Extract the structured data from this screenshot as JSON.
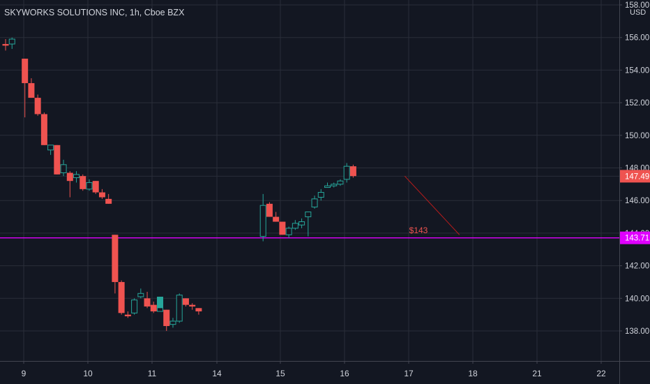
{
  "header": {
    "title": "SKYWORKS SOLUTIONS INC, 1h, Cboe BZX"
  },
  "colors": {
    "background": "#131722",
    "grid": "#2a2e39",
    "up": "#26a69a",
    "down": "#ef5350",
    "hline": "#e000ff",
    "text": "#d1d4dc",
    "annotation": "#ef5350"
  },
  "chart_data": {
    "type": "candlestick",
    "title": "SKYWORKS SOLUTIONS INC, 1h, Cboe BZX",
    "currency": "USD",
    "ylim": [
      136.3,
      158.0
    ],
    "y_ticks": [
      "138.00",
      "140.00",
      "142.00",
      "144.00",
      "146.00",
      "148.00",
      "150.00",
      "152.00",
      "154.00",
      "156.00",
      "158.00"
    ],
    "x_ticks": [
      "9",
      "10",
      "11",
      "14",
      "15",
      "16",
      "17",
      "18",
      "21",
      "22"
    ],
    "grid": true,
    "last_price": "147.49",
    "horizontal_line": {
      "value": 143.71,
      "label": "143.71"
    },
    "annotation": {
      "text": "$143",
      "from": {
        "bar": 62,
        "price": 147.5
      },
      "to": {
        "bar": 70.5,
        "price": 143.9
      }
    },
    "candles": [
      {
        "bar": 0,
        "o": 155.6,
        "h": 155.9,
        "l": 155.2,
        "c": 155.5
      },
      {
        "bar": 1,
        "o": 155.6,
        "h": 156.0,
        "l": 155.3,
        "c": 155.9
      },
      {
        "bar": 3,
        "o": 154.7,
        "h": 154.7,
        "l": 151.1,
        "c": 153.2
      },
      {
        "bar": 4,
        "o": 153.2,
        "h": 153.5,
        "l": 152.3,
        "c": 152.3
      },
      {
        "bar": 5,
        "o": 152.3,
        "h": 152.5,
        "l": 151.2,
        "c": 151.3
      },
      {
        "bar": 6,
        "o": 151.3,
        "h": 151.4,
        "l": 149.4,
        "c": 149.4
      },
      {
        "bar": 7,
        "o": 149.1,
        "h": 149.4,
        "l": 148.8,
        "c": 149.4
      },
      {
        "bar": 8,
        "o": 149.4,
        "h": 149.4,
        "l": 147.6,
        "c": 147.6
      },
      {
        "bar": 9,
        "o": 147.7,
        "h": 148.5,
        "l": 147.5,
        "c": 148.2
      },
      {
        "bar": 10,
        "o": 147.7,
        "h": 147.8,
        "l": 146.2,
        "c": 147.2
      },
      {
        "bar": 11,
        "o": 147.4,
        "h": 147.8,
        "l": 147.1,
        "c": 147.6
      },
      {
        "bar": 12,
        "o": 147.5,
        "h": 147.6,
        "l": 146.6,
        "c": 146.7
      },
      {
        "bar": 13,
        "o": 146.7,
        "h": 147.3,
        "l": 146.6,
        "c": 147.1
      },
      {
        "bar": 14,
        "o": 147.2,
        "h": 147.2,
        "l": 146.4,
        "c": 146.5
      },
      {
        "bar": 15,
        "o": 146.5,
        "h": 146.7,
        "l": 146.1,
        "c": 146.2
      },
      {
        "bar": 16,
        "o": 146.1,
        "h": 146.4,
        "l": 145.8,
        "c": 145.8
      },
      {
        "bar": 17,
        "o": 143.9,
        "h": 143.9,
        "l": 140.3,
        "c": 141.0
      },
      {
        "bar": 18,
        "o": 141.0,
        "h": 141.1,
        "l": 139.0,
        "c": 139.1
      },
      {
        "bar": 19,
        "o": 139.0,
        "h": 139.2,
        "l": 138.8,
        "c": 138.9
      },
      {
        "bar": 20,
        "o": 139.1,
        "h": 140.0,
        "l": 139.0,
        "c": 139.9
      },
      {
        "bar": 21,
        "o": 140.1,
        "h": 140.6,
        "l": 140.0,
        "c": 140.3
      },
      {
        "bar": 22,
        "o": 140.0,
        "h": 140.4,
        "l": 139.4,
        "c": 139.5
      },
      {
        "bar": 23,
        "o": 139.6,
        "h": 139.8,
        "l": 139.1,
        "c": 139.2
      },
      {
        "bar": 24,
        "o": 139.2,
        "h": 140.1,
        "l": 139.2,
        "c": 139.9
      },
      {
        "bar": 25,
        "o": 139.3,
        "h": 139.3,
        "l": 138.0,
        "c": 138.3
      },
      {
        "bar": 26,
        "o": 138.4,
        "h": 138.8,
        "l": 138.2,
        "c": 138.6
      },
      {
        "bar": 27,
        "o": 138.6,
        "h": 140.3,
        "l": 138.5,
        "c": 140.2
      },
      {
        "bar": 28,
        "o": 140.0,
        "h": 140.0,
        "l": 139.5,
        "c": 139.6
      },
      {
        "bar": 29,
        "o": 139.6,
        "h": 139.7,
        "l": 139.3,
        "c": 139.5
      },
      {
        "bar": 30,
        "o": 139.4,
        "h": 139.4,
        "l": 139.0,
        "c": 139.2
      },
      {
        "bar": 40,
        "o": 143.8,
        "h": 146.4,
        "l": 143.5,
        "c": 145.7
      },
      {
        "bar": 41,
        "o": 145.8,
        "h": 145.9,
        "l": 145.0,
        "c": 145.0
      },
      {
        "bar": 42,
        "o": 145.0,
        "h": 145.3,
        "l": 144.7,
        "c": 144.7
      },
      {
        "bar": 43,
        "o": 144.7,
        "h": 144.7,
        "l": 143.9,
        "c": 143.9
      },
      {
        "bar": 44,
        "o": 143.9,
        "h": 144.4,
        "l": 143.7,
        "c": 144.3
      },
      {
        "bar": 45,
        "o": 144.3,
        "h": 144.8,
        "l": 144.2,
        "c": 144.6
      },
      {
        "bar": 46,
        "o": 144.5,
        "h": 144.9,
        "l": 144.3,
        "c": 144.7
      },
      {
        "bar": 47,
        "o": 145.0,
        "h": 145.3,
        "l": 143.8,
        "c": 145.3
      },
      {
        "bar": 48,
        "o": 145.6,
        "h": 146.3,
        "l": 145.5,
        "c": 146.1
      },
      {
        "bar": 49,
        "o": 146.2,
        "h": 146.7,
        "l": 146.0,
        "c": 146.5
      },
      {
        "bar": 50,
        "o": 146.8,
        "h": 147.1,
        "l": 146.8,
        "c": 146.9
      },
      {
        "bar": 51,
        "o": 146.9,
        "h": 147.1,
        "l": 146.8,
        "c": 147.0
      },
      {
        "bar": 52,
        "o": 147.0,
        "h": 147.3,
        "l": 146.9,
        "c": 147.2
      },
      {
        "bar": 53,
        "o": 147.3,
        "h": 148.3,
        "l": 147.1,
        "c": 148.1
      },
      {
        "bar": 54,
        "o": 148.1,
        "h": 148.2,
        "l": 147.4,
        "c": 147.5
      }
    ]
  }
}
